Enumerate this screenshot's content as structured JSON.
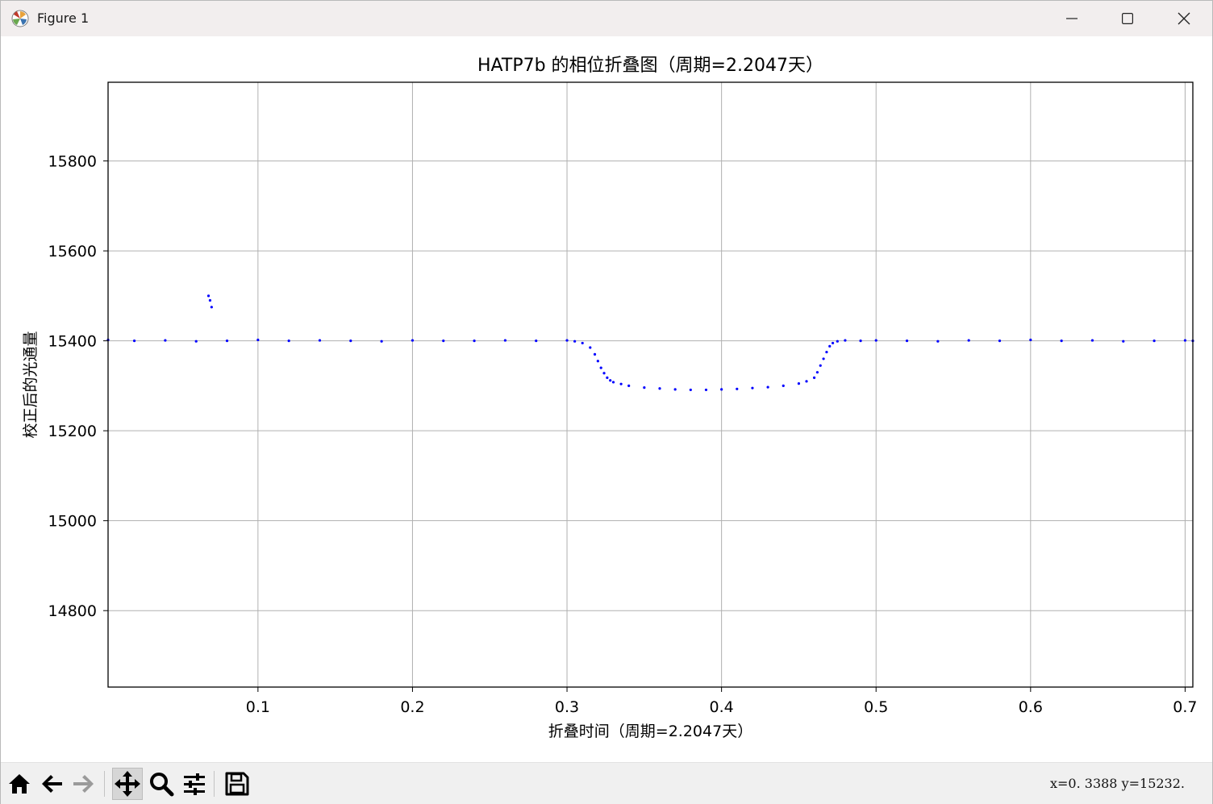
{
  "window": {
    "title": "Figure 1"
  },
  "toolbar": {
    "coords": "x=0. 3388  y=15232.",
    "buttons": [
      {
        "name": "home-button",
        "icon": "home-icon"
      },
      {
        "name": "back-button",
        "icon": "arrow-left-icon"
      },
      {
        "name": "forward-button",
        "icon": "arrow-right-icon"
      },
      {
        "name": "pan-button",
        "icon": "move-icon",
        "active": true
      },
      {
        "name": "zoom-button",
        "icon": "magnifier-icon"
      },
      {
        "name": "configure-subplots-button",
        "icon": "sliders-icon"
      },
      {
        "name": "save-button",
        "icon": "floppy-disk-icon"
      }
    ]
  },
  "colors": {
    "points": "#0000ff",
    "grid": "#b0b0b0",
    "axes": "#000000"
  },
  "chart_data": {
    "type": "scatter",
    "title": "HATP7b 的相位折叠图（周期=2.2047天）",
    "xlabel": "折叠时间（周期=2.2047天）",
    "ylabel": "校正后的光通量",
    "xlim": [
      0.003,
      0.705
    ],
    "ylim": [
      14630,
      15975
    ],
    "xticks": [
      0.1,
      0.2,
      0.3,
      0.4,
      0.5,
      0.6,
      0.7
    ],
    "xtick_labels": [
      "0.1",
      "0.2",
      "0.3",
      "0.4",
      "0.5",
      "0.6",
      "0.7"
    ],
    "yticks": [
      14800,
      15000,
      15200,
      15400,
      15600,
      15800
    ],
    "ytick_labels": [
      "14800",
      "15000",
      "15200",
      "15400",
      "15600",
      "15800"
    ],
    "grid": true,
    "series": [
      {
        "x": [
          0.003,
          0.02,
          0.04,
          0.06,
          0.08,
          0.1,
          0.12,
          0.14,
          0.16,
          0.18,
          0.2,
          0.22,
          0.24,
          0.26,
          0.28,
          0.3,
          0.305,
          0.31,
          0.315,
          0.318,
          0.32,
          0.322,
          0.324,
          0.326,
          0.328,
          0.33,
          0.335,
          0.34,
          0.35,
          0.36,
          0.37,
          0.38,
          0.39,
          0.4,
          0.41,
          0.42,
          0.43,
          0.44,
          0.45,
          0.455,
          0.46,
          0.462,
          0.464,
          0.466,
          0.468,
          0.47,
          0.472,
          0.475,
          0.48,
          0.49,
          0.5,
          0.52,
          0.54,
          0.56,
          0.58,
          0.6,
          0.62,
          0.64,
          0.66,
          0.68,
          0.7,
          0.705
        ],
        "y": [
          15402,
          15400,
          15401,
          15399,
          15400,
          15402,
          15400,
          15401,
          15400,
          15399,
          15401,
          15400,
          15400,
          15401,
          15400,
          15401,
          15399,
          15395,
          15385,
          15370,
          15355,
          15340,
          15328,
          15318,
          15312,
          15308,
          15304,
          15300,
          15296,
          15294,
          15292,
          15291,
          15291,
          15292,
          15293,
          15295,
          15297,
          15300,
          15305,
          15310,
          15318,
          15330,
          15345,
          15360,
          15375,
          15388,
          15395,
          15399,
          15401,
          15400,
          15401,
          15400,
          15399,
          15401,
          15400,
          15402,
          15400,
          15401,
          15399,
          15400,
          15401,
          15400
        ]
      }
    ],
    "outliers": [
      {
        "x": 0.068,
        "y": 15500
      },
      {
        "x": 0.069,
        "y": 15490
      },
      {
        "x": 0.07,
        "y": 15475
      }
    ]
  }
}
